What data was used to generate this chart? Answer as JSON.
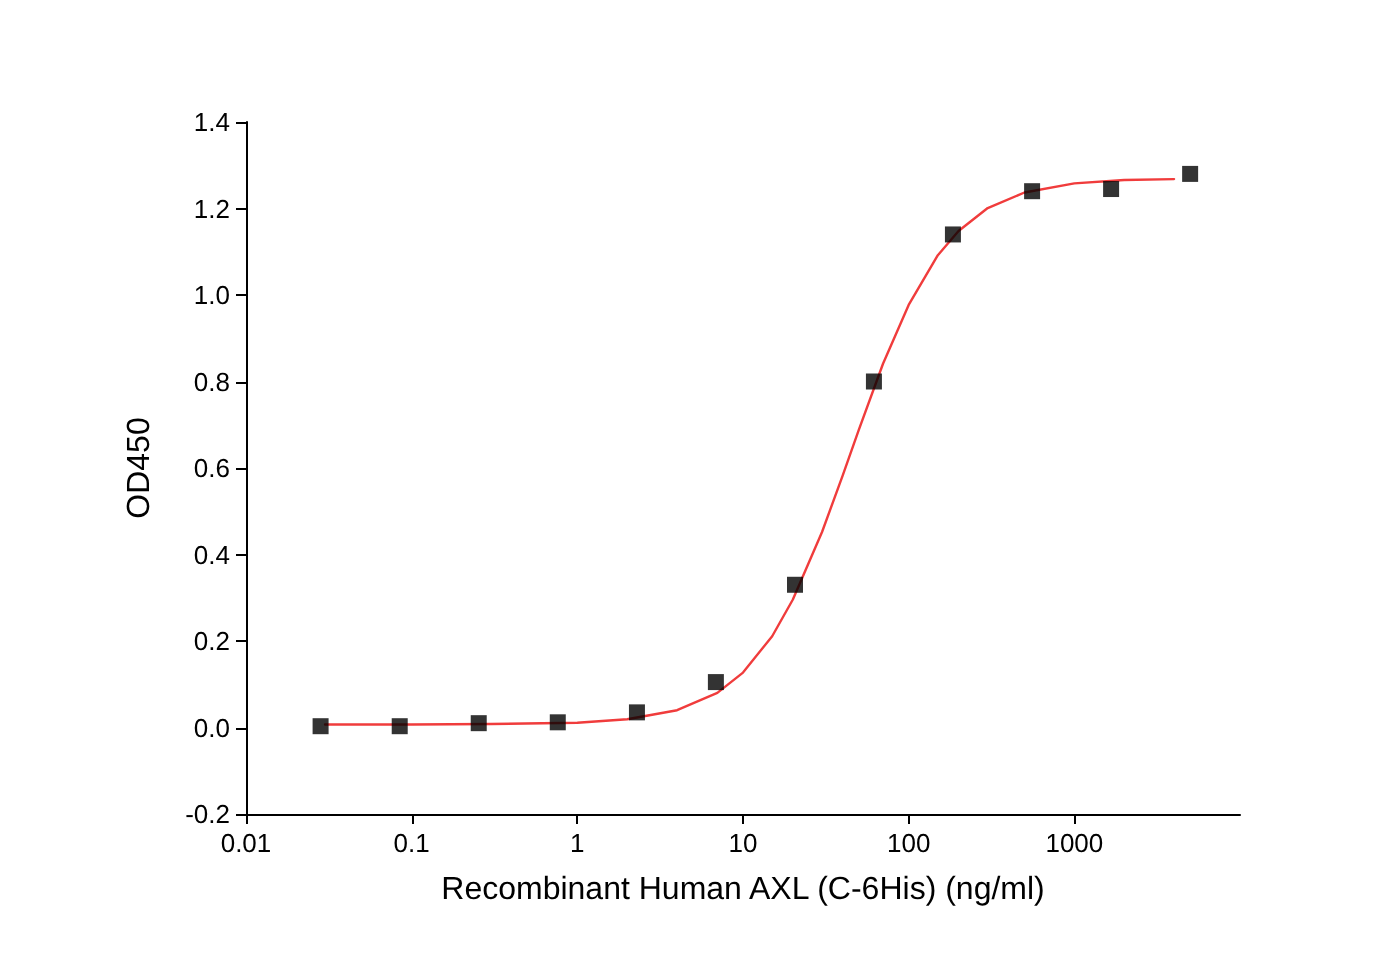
{
  "chart_data": {
    "type": "scatter",
    "xlabel": "Recombinant Human AXL (C-6His) (ng/ml)",
    "ylabel": "OD450",
    "log": "x",
    "xlim": [
      0.01,
      10000
    ],
    "xticks": [
      0.01,
      0.1,
      1,
      10,
      100,
      1000
    ],
    "ylim": [
      -0.2,
      1.4
    ],
    "yticks": [
      -0.2,
      {
        "value": 0,
        "label": "0.0"
      },
      0.2,
      0.4,
      0.6,
      0.8,
      {
        "value": 1,
        "label": "1.0"
      },
      1.2,
      1.4
    ],
    "grid": false,
    "series": [
      {
        "marker": "square",
        "color": "#000000",
        "x": [
          0.0282,
          0.0847,
          0.254,
          0.762,
          2.29,
          6.86,
          20.6,
          61.7,
          185,
          556,
          1667,
          5000
        ],
        "values": [
          0.003,
          0.003,
          0.01,
          0.012,
          0.035,
          0.105,
          0.33,
          0.8,
          1.14,
          1.24,
          1.245,
          1.28
        ]
      },
      {
        "type": "line",
        "marker": "none",
        "line_style": "solid",
        "color": "#f03c3c",
        "x": [
          0.03,
          0.1,
          0.3,
          1,
          2,
          4,
          7,
          10,
          15,
          20,
          30,
          40,
          50,
          70,
          100,
          150,
          200,
          300,
          500,
          1000,
          2000,
          4000
        ],
        "values": [
          0.007,
          0.007,
          0.008,
          0.011,
          0.019,
          0.04,
          0.08,
          0.127,
          0.211,
          0.296,
          0.452,
          0.583,
          0.688,
          0.841,
          0.977,
          1.092,
          1.148,
          1.201,
          1.237,
          1.258,
          1.266,
          1.268
        ]
      }
    ]
  }
}
